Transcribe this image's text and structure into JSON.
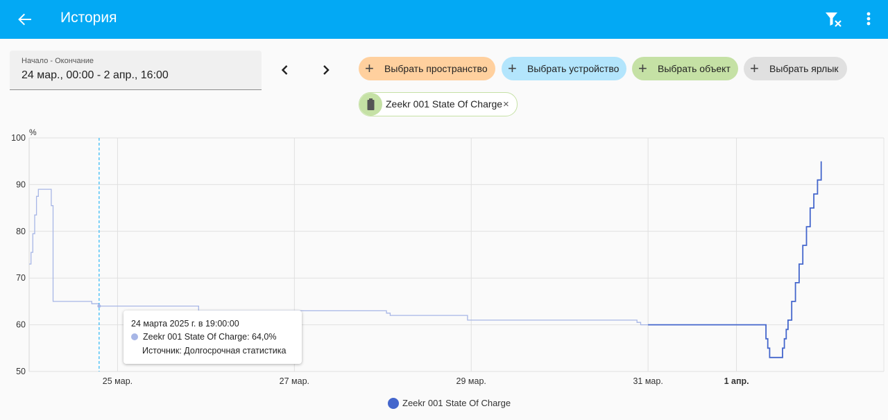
{
  "app": {
    "title": "История"
  },
  "icons": {
    "back": "arrow-left-icon",
    "filter_clear": "filter-remove-icon",
    "menu": "dots-vertical-icon",
    "prev": "chevron-left-icon",
    "next": "chevron-right-icon",
    "plus": "plus-icon",
    "battery": "battery-icon",
    "close": "close-icon"
  },
  "daterange": {
    "label": "Начало - Окончание",
    "value": "24 мар., 00:00 - 2 апр., 16:00"
  },
  "chips": [
    {
      "label": "Выбрать пространство",
      "color": "#ffd09e"
    },
    {
      "label": "Выбрать устройство",
      "color": "#b3e5fc"
    },
    {
      "label": "Выбрать объект",
      "color": "#c5e1a5"
    },
    {
      "label": "Выбрать ярлык",
      "color": "#e0e0e0"
    }
  ],
  "selected": {
    "label": "Zeekr 001 State Of Charge",
    "remove": "×"
  },
  "colors": {
    "appbar": "#03a9f4",
    "series_faded": "#a7b6e6",
    "series": "#4466cc"
  },
  "chart_data": {
    "type": "line",
    "ylabel": "%",
    "ylim": [
      50,
      100
    ],
    "yticks": [
      "100",
      "90",
      "80",
      "70",
      "60",
      "50"
    ],
    "xlim": [
      "2025-03-24 00:00",
      "2025-04-02 16:00"
    ],
    "xticks": [
      {
        "at": "2025-03-25 00:00",
        "label": "25 мар."
      },
      {
        "at": "2025-03-27 00:00",
        "label": "27 мар."
      },
      {
        "at": "2025-03-29 00:00",
        "label": "29 мар."
      },
      {
        "at": "2025-03-31 00:00",
        "label": "31 мар."
      },
      {
        "at": "2025-04-01 00:00",
        "label": "1 апр.",
        "bold": true
      }
    ],
    "grid": true,
    "legend_position": "bottom",
    "series": [
      {
        "name": "Zeekr 001 State Of Charge",
        "interpolation": "step",
        "color": "#a7b6e6",
        "points": [
          [
            "2025-03-24 00:00",
            73
          ],
          [
            "2025-03-24 00:30",
            75.5
          ],
          [
            "2025-03-24 01:00",
            79.5
          ],
          [
            "2025-03-24 01:30",
            83.5
          ],
          [
            "2025-03-24 02:00",
            87.5
          ],
          [
            "2025-03-24 02:30",
            89
          ],
          [
            "2025-03-24 06:00",
            85.5
          ],
          [
            "2025-03-24 06:30",
            65
          ],
          [
            "2025-03-24 07:00",
            65
          ],
          [
            "2025-03-24 10:00",
            65
          ],
          [
            "2025-03-24 17:00",
            64.5
          ],
          [
            "2025-03-24 19:00",
            64
          ],
          [
            "2025-03-25 22:00",
            63
          ],
          [
            "2025-03-28 01:00",
            62.5
          ],
          [
            "2025-03-28 02:00",
            62
          ],
          [
            "2025-03-28 23:00",
            61
          ],
          [
            "2025-03-30 21:00",
            60.5
          ],
          [
            "2025-03-30 22:00",
            60
          ],
          [
            "2025-03-31 00:00",
            60
          ]
        ]
      },
      {
        "name": "Zeekr 001 State Of Charge",
        "interpolation": "step",
        "color": "#4466cc",
        "points": [
          [
            "2025-03-31 00:00",
            60
          ],
          [
            "2025-04-01 07:20",
            60
          ],
          [
            "2025-04-01 08:00",
            57
          ],
          [
            "2025-04-01 08:30",
            55
          ],
          [
            "2025-04-01 09:00",
            53
          ],
          [
            "2025-04-01 12:00",
            53
          ],
          [
            "2025-04-01 12:30",
            55
          ],
          [
            "2025-04-01 13:00",
            57
          ],
          [
            "2025-04-01 13:30",
            59
          ],
          [
            "2025-04-01 14:00",
            61
          ],
          [
            "2025-04-01 15:00",
            65
          ],
          [
            "2025-04-01 16:00",
            69
          ],
          [
            "2025-04-01 17:00",
            73
          ],
          [
            "2025-04-01 18:00",
            77
          ],
          [
            "2025-04-01 19:00",
            81
          ],
          [
            "2025-04-01 20:00",
            85
          ],
          [
            "2025-04-01 21:00",
            88
          ],
          [
            "2025-04-01 22:00",
            91
          ],
          [
            "2025-04-01 23:00",
            95
          ]
        ]
      }
    ],
    "cursor": "2025-03-24 19:00",
    "tooltip": {
      "time": "24 марта 2025 г. в 19:00:00",
      "value_line": "Zeekr 001 State Of Charge: 64,0%",
      "source": "Источник: Долгосрочная статистика"
    },
    "legend": [
      "Zeekr 001 State Of Charge"
    ]
  }
}
